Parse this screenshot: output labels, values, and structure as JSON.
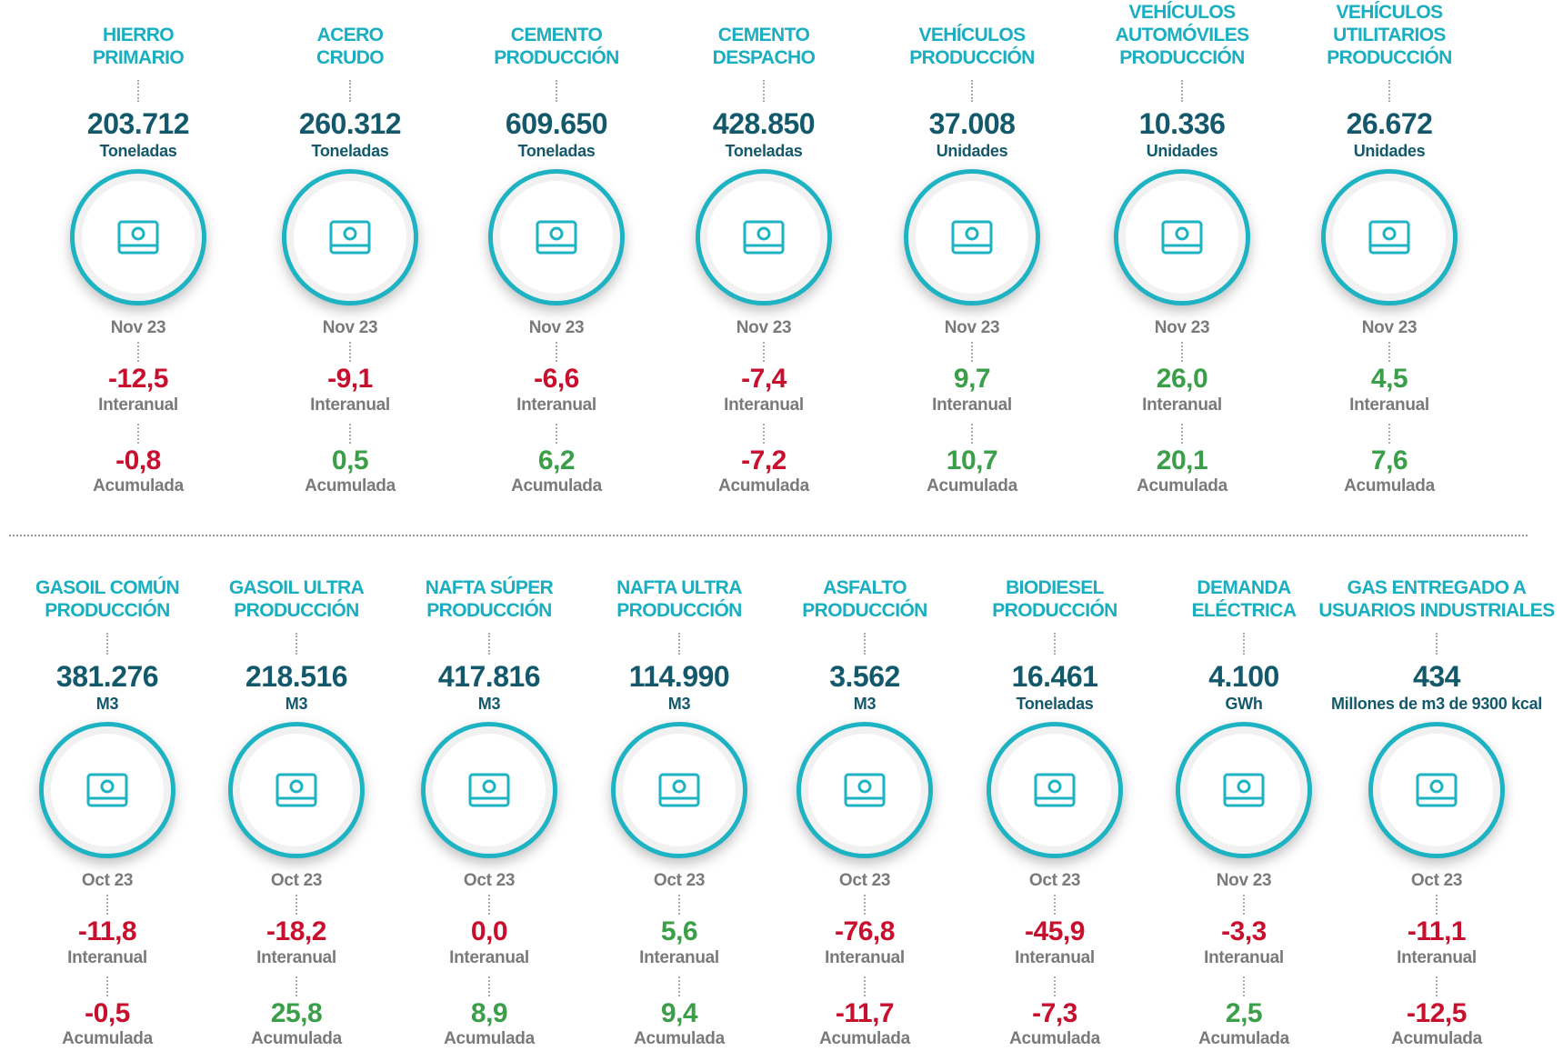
{
  "rows": [
    {
      "items": [
        {
          "title": [
            "HIERRO",
            "PRIMARIO"
          ],
          "value": "203.712",
          "unit": "Toneladas",
          "period": "Nov 23",
          "interanual": {
            "value": "-12,5",
            "label": "Interanual",
            "color": "#c8102e"
          },
          "acumulada": {
            "value": "-0,8",
            "label": "Acumulada",
            "color": "#c8102e"
          }
        },
        {
          "title": [
            "ACERO",
            "CRUDO"
          ],
          "value": "260.312",
          "unit": "Toneladas",
          "period": "Nov 23",
          "interanual": {
            "value": "-9,1",
            "label": "Interanual",
            "color": "#c8102e"
          },
          "acumulada": {
            "value": "0,5",
            "label": "Acumulada",
            "color": "#3a9f48"
          }
        },
        {
          "title": [
            "CEMENTO",
            "PRODUCCIÓN"
          ],
          "value": "609.650",
          "unit": "Toneladas",
          "period": "Nov 23",
          "interanual": {
            "value": "-6,6",
            "label": "Interanual",
            "color": "#c8102e"
          },
          "acumulada": {
            "value": "6,2",
            "label": "Acumulada",
            "color": "#3a9f48"
          }
        },
        {
          "title": [
            "CEMENTO",
            "DESPACHO"
          ],
          "value": "428.850",
          "unit": "Toneladas",
          "period": "Nov 23",
          "interanual": {
            "value": "-7,4",
            "label": "Interanual",
            "color": "#c8102e"
          },
          "acumulada": {
            "value": "-7,2",
            "label": "Acumulada",
            "color": "#c8102e"
          }
        },
        {
          "title": [
            "VEHÍCULOS",
            "PRODUCCIÓN"
          ],
          "value": "37.008",
          "unit": "Unidades",
          "period": "Nov 23",
          "interanual": {
            "value": "9,7",
            "label": "Interanual",
            "color": "#3a9f48"
          },
          "acumulada": {
            "value": "10,7",
            "label": "Acumulada",
            "color": "#3a9f48"
          }
        },
        {
          "title": [
            "VEHÍCULOS",
            "AUTOMÓVILES",
            "PRODUCCIÓN"
          ],
          "value": "10.336",
          "unit": "Unidades",
          "period": "Nov 23",
          "interanual": {
            "value": "26,0",
            "label": "Interanual",
            "color": "#3a9f48"
          },
          "acumulada": {
            "value": "20,1",
            "label": "Acumulada",
            "color": "#3a9f48"
          }
        },
        {
          "title": [
            "VEHÍCULOS",
            "UTILITARIOS",
            "PRODUCCIÓN"
          ],
          "value": "26.672",
          "unit": "Unidades",
          "period": "Nov 23",
          "interanual": {
            "value": "4,5",
            "label": "Interanual",
            "color": "#3a9f48"
          },
          "acumulada": {
            "value": "7,6",
            "label": "Acumulada",
            "color": "#3a9f48"
          }
        }
      ]
    },
    {
      "items": [
        {
          "title": [
            "GASOIL COMÚN",
            "PRODUCCIÓN"
          ],
          "value": "381.276",
          "unit": "M3",
          "period": "Oct 23",
          "interanual": {
            "value": "-11,8",
            "label": "Interanual",
            "color": "#c8102e"
          },
          "acumulada": {
            "value": "-0,5",
            "label": "Acumulada",
            "color": "#c8102e"
          }
        },
        {
          "title": [
            "GASOIL ULTRA",
            "PRODUCCIÓN"
          ],
          "value": "218.516",
          "unit": "M3",
          "period": "Oct 23",
          "interanual": {
            "value": "-18,2",
            "label": "Interanual",
            "color": "#c8102e"
          },
          "acumulada": {
            "value": "25,8",
            "label": "Acumulada",
            "color": "#3a9f48"
          }
        },
        {
          "title": [
            "NAFTA SÚPER",
            "PRODUCCIÓN"
          ],
          "value": "417.816",
          "unit": "M3",
          "period": "Oct 23",
          "interanual": {
            "value": "0,0",
            "label": "Interanual",
            "color": "#c8102e"
          },
          "acumulada": {
            "value": "8,9",
            "label": "Acumulada",
            "color": "#3a9f48"
          }
        },
        {
          "title": [
            "NAFTA ULTRA",
            "PRODUCCIÓN"
          ],
          "value": "114.990",
          "unit": "M3",
          "period": "Oct 23",
          "interanual": {
            "value": "5,6",
            "label": "Interanual",
            "color": "#3a9f48"
          },
          "acumulada": {
            "value": "9,4",
            "label": "Acumulada",
            "color": "#3a9f48"
          }
        },
        {
          "title": [
            "ASFALTO",
            "PRODUCCIÓN"
          ],
          "value": "3.562",
          "unit": "M3",
          "period": "Oct 23",
          "interanual": {
            "value": "-76,8",
            "label": "Interanual",
            "color": "#c8102e"
          },
          "acumulada": {
            "value": "-11,7",
            "label": "Acumulada",
            "color": "#c8102e"
          }
        },
        {
          "title": [
            "BIODIESEL",
            "PRODUCCIÓN"
          ],
          "value": "16.461",
          "unit": "Toneladas",
          "period": "Oct 23",
          "interanual": {
            "value": "-45,9",
            "label": "Interanual",
            "color": "#c8102e"
          },
          "acumulada": {
            "value": "-7,3",
            "label": "Acumulada",
            "color": "#c8102e"
          }
        },
        {
          "title": [
            "DEMANDA",
            "ELÉCTRICA"
          ],
          "value": "4.100",
          "unit": "GWh",
          "period": "Nov 23",
          "interanual": {
            "value": "-3,3",
            "label": "Interanual",
            "color": "#c8102e"
          },
          "acumulada": {
            "value": "2,5",
            "label": "Acumulada",
            "color": "#3a9f48"
          }
        },
        {
          "title": [
            "GAS ENTREGADO A",
            "USUARIOS INDUSTRIALES"
          ],
          "value": "434",
          "unit": "Millones de m3 de 9300 kcal",
          "period": "Oct 23",
          "interanual": {
            "value": "-11,1",
            "label": "Interanual",
            "color": "#c8102e"
          },
          "acumulada": {
            "value": "-12,5",
            "label": "Acumulada",
            "color": "#c8102e"
          }
        }
      ]
    }
  ]
}
